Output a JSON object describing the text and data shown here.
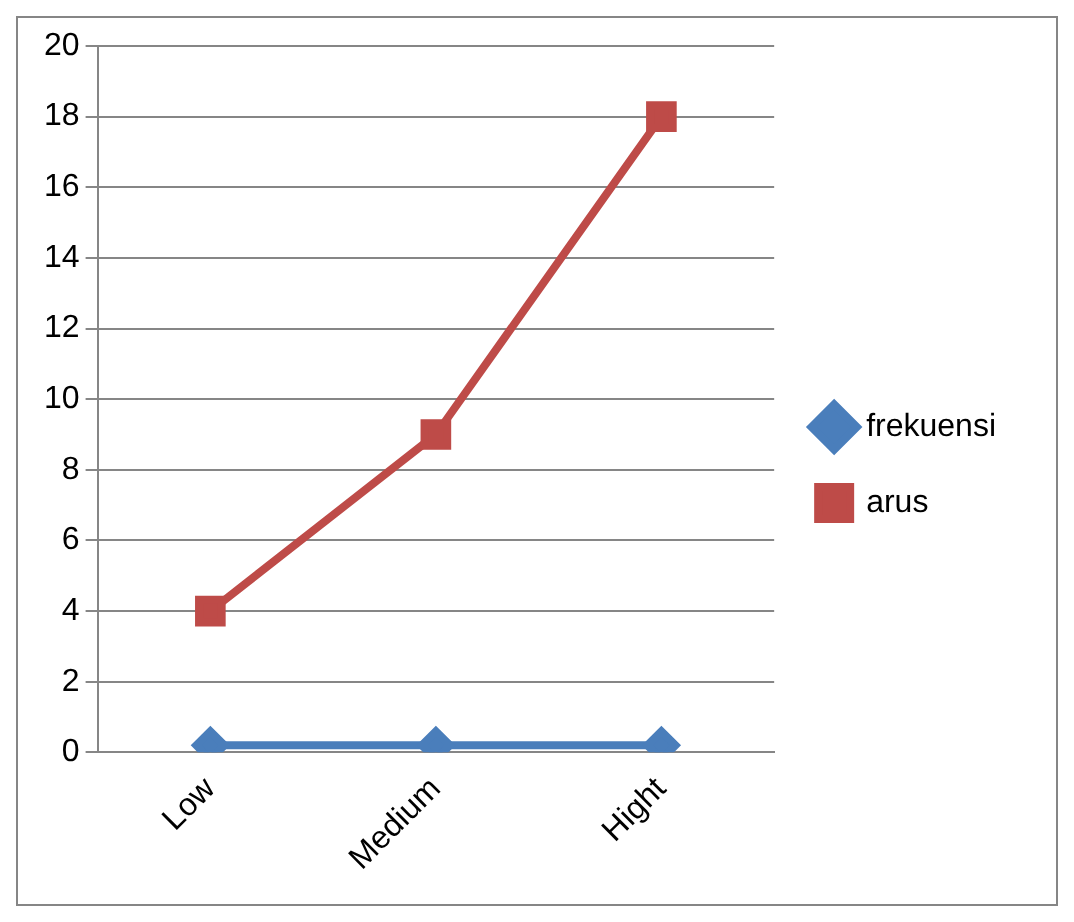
{
  "chart_data": {
    "type": "line",
    "categories": [
      "Low",
      "Medium",
      "Hight"
    ],
    "series": [
      {
        "name": "frekuensi",
        "color": "#4a7ebb",
        "values": [
          0.2,
          0.2,
          0.2
        ],
        "marker": "diamond"
      },
      {
        "name": "arus",
        "color": "#be4b48",
        "values": [
          4,
          9,
          18
        ],
        "marker": "square"
      }
    ],
    "ylim": [
      0,
      20
    ],
    "yticks": [
      0,
      2,
      4,
      6,
      8,
      10,
      12,
      14,
      16,
      18,
      20
    ],
    "grid": "y",
    "legend": "right",
    "line_style": "solid"
  }
}
